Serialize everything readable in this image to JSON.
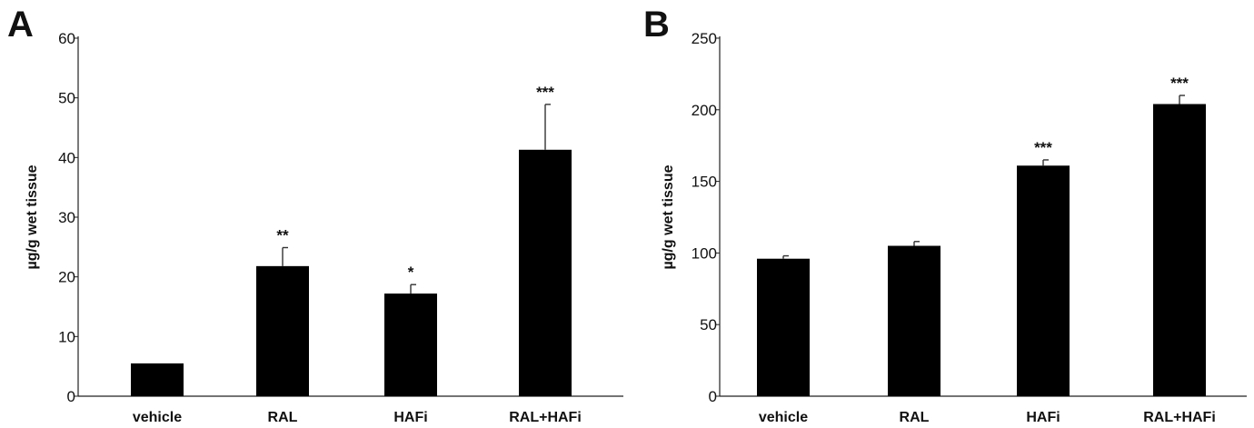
{
  "chart_data": [
    {
      "type": "bar",
      "panel": "A",
      "ylabel": "µg/g wet tissue",
      "xlabel": "",
      "ylim": [
        0,
        60
      ],
      "yticks": [
        0,
        10,
        20,
        30,
        40,
        50,
        60
      ],
      "categories": [
        "vehicle",
        "RAL",
        "HAFi",
        "RAL+HAFi"
      ],
      "values": [
        5.5,
        21.8,
        17.2,
        41.3
      ],
      "errors": [
        0,
        3.1,
        1.5,
        7.6
      ],
      "significance": [
        "",
        "**",
        "*",
        "***"
      ],
      "bar_color": "#000000"
    },
    {
      "type": "bar",
      "panel": "B",
      "ylabel": "µg/g wet tissue",
      "xlabel": "",
      "ylim": [
        0,
        250
      ],
      "yticks": [
        0,
        50,
        100,
        150,
        200,
        250
      ],
      "categories": [
        "vehicle",
        "RAL",
        "HAFi",
        "RAL+HAFi"
      ],
      "values": [
        96,
        105,
        161,
        204
      ],
      "errors": [
        2,
        3,
        4,
        6
      ],
      "significance": [
        "",
        "",
        "***",
        "***"
      ],
      "bar_color": "#000000"
    }
  ]
}
